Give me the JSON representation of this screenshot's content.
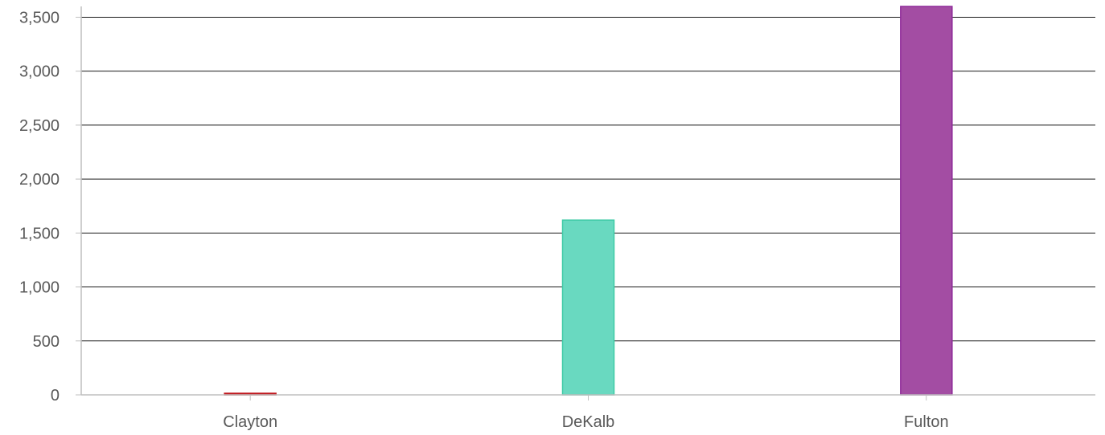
{
  "chart_data": {
    "type": "bar",
    "categories": [
      "Clayton",
      "DeKalb",
      "Fulton"
    ],
    "values": [
      10,
      1620,
      3600
    ],
    "colors": [
      {
        "fill": "#c0171c",
        "stroke": "#c0171c"
      },
      {
        "fill": "#69d9c0",
        "stroke": "#3fcaa6"
      },
      {
        "fill": "#a34da3",
        "stroke": "#8f2b9a"
      }
    ],
    "ylim": [
      0,
      3600
    ],
    "yticks": [
      0,
      500,
      1000,
      1500,
      2000,
      2500,
      3000,
      3500
    ],
    "ytick_labels": [
      "0",
      "500",
      "1,000",
      "1,500",
      "2,000",
      "2,500",
      "3,000",
      "3,500"
    ],
    "grid": true,
    "title": "",
    "xlabel": "",
    "ylabel": ""
  }
}
